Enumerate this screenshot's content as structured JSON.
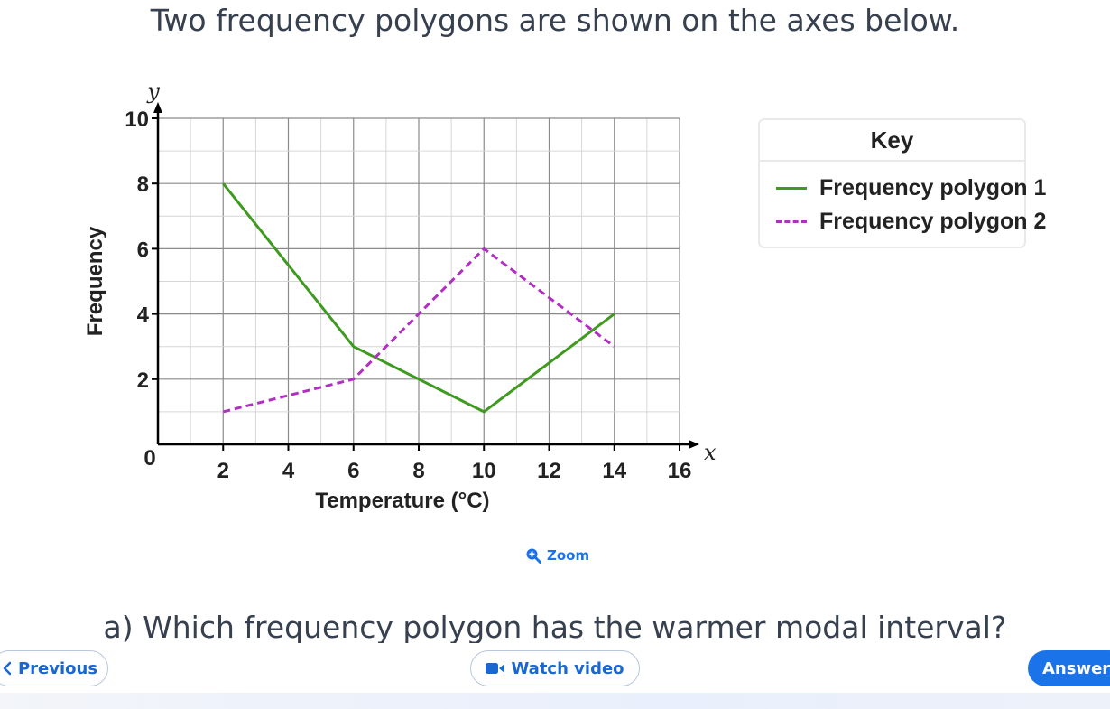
{
  "intro": "Two frequency polygons are shown on the axes below.",
  "chart_data": {
    "type": "line",
    "xlabel": "Temperature (°C)",
    "ylabel": "Frequency",
    "x_axis_symbol": "x",
    "y_axis_symbol": "y",
    "xlim": [
      0,
      16
    ],
    "ylim": [
      0,
      10
    ],
    "x_ticks": [
      "2",
      "4",
      "6",
      "8",
      "10",
      "12",
      "14",
      "16"
    ],
    "y_ticks": [
      "2",
      "4",
      "6",
      "8",
      "10"
    ],
    "origin_label": "0",
    "grid": true,
    "series": [
      {
        "name": "Frequency polygon 1",
        "style": "solid",
        "color": "#3f9a1f",
        "points": [
          [
            2,
            8
          ],
          [
            6,
            3
          ],
          [
            10,
            1
          ],
          [
            14,
            4
          ]
        ]
      },
      {
        "name": "Frequency polygon 2",
        "style": "dashed",
        "color": "#b22fc4",
        "points": [
          [
            2,
            1
          ],
          [
            6,
            2
          ],
          [
            10,
            6
          ],
          [
            14,
            3
          ]
        ]
      }
    ]
  },
  "key": {
    "title": "Key",
    "items": [
      {
        "label": "Frequency polygon 1",
        "color": "#3f9a1f",
        "style": "solid"
      },
      {
        "label": "Frequency polygon 2",
        "color": "#b22fc4",
        "style": "dashed"
      }
    ]
  },
  "zoom": {
    "label": "Zoom",
    "icon": "zoom-in-icon"
  },
  "question": "a) Which frequency polygon has the warmer modal interval?",
  "nav": {
    "previous_label": "Previous",
    "previous_icon": "chevron-left-icon",
    "video_label": "Watch video",
    "video_icon": "video-camera-icon",
    "answer_label": "Answer"
  }
}
